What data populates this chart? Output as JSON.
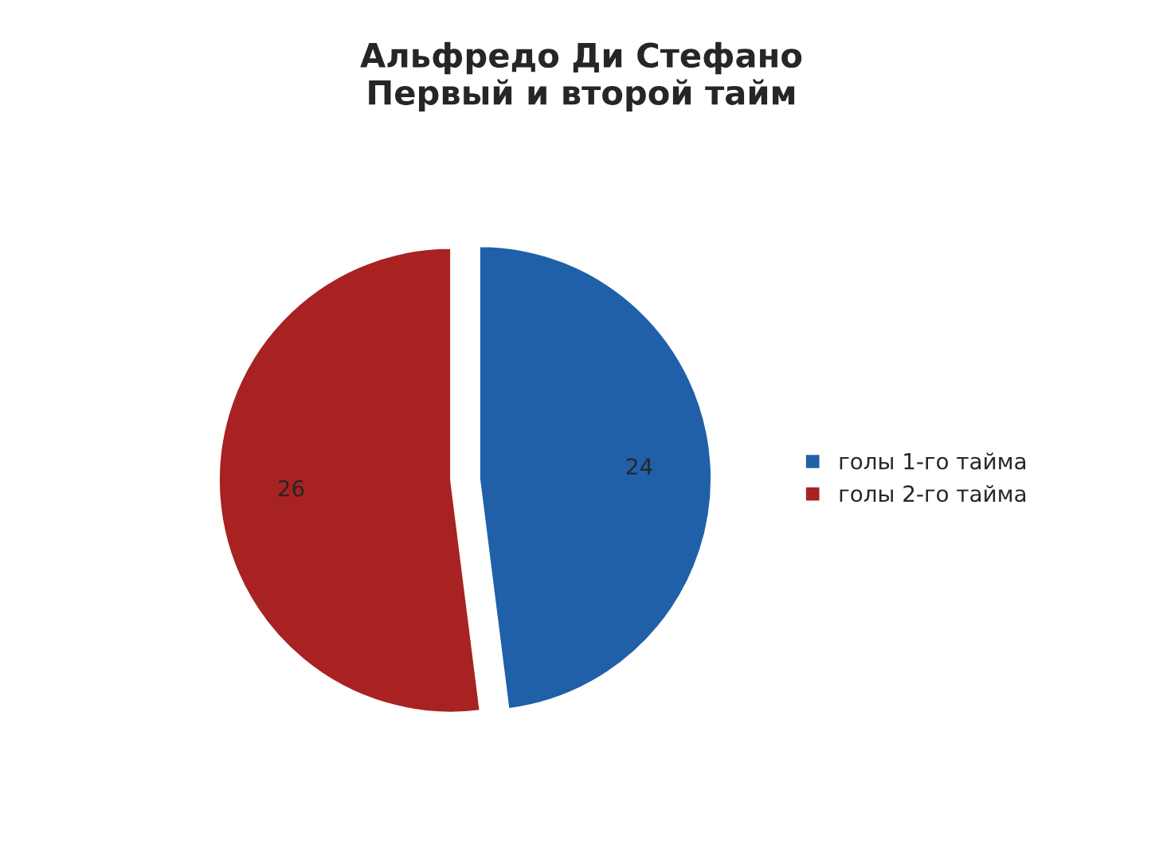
{
  "chart_data": {
    "type": "pie",
    "title": "Альфредо Ди Стефано\nПервый и второй тайм",
    "categories": [
      "голы 1-го тайма",
      "голы 2-го тайма"
    ],
    "values": [
      24,
      26
    ],
    "colors": [
      "#2060a8",
      "#a82222"
    ],
    "data_labels": true,
    "legend": "right"
  }
}
